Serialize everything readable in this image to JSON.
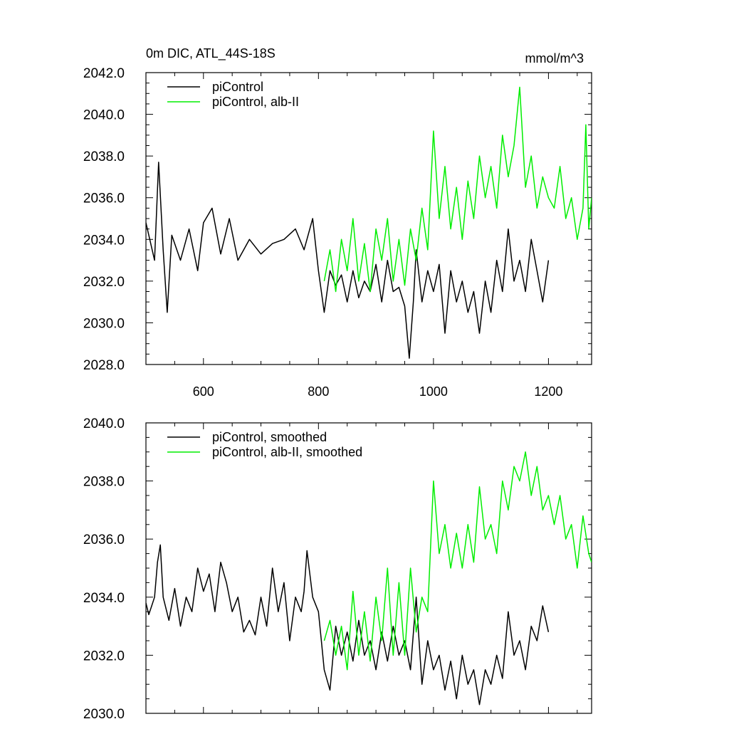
{
  "chart_data": [
    {
      "type": "line",
      "title": "0m DIC, ATL_44S-18S",
      "units": "mmol/m^3",
      "xlim": [
        500,
        1275
      ],
      "ylim": [
        2028.0,
        2042.0
      ],
      "xticks": [
        600,
        800,
        1000,
        1200
      ],
      "xtick_labels": [
        "600",
        "800",
        "1000",
        "1200"
      ],
      "yticks": [
        2028.0,
        2030.0,
        2032.0,
        2034.0,
        2036.0,
        2038.0,
        2040.0,
        2042.0
      ],
      "ytick_labels": [
        "2028.0",
        "2030.0",
        "2032.0",
        "2034.0",
        "2036.0",
        "2038.0",
        "2040.0",
        "2042.0"
      ],
      "legend_position": "top-left",
      "series": [
        {
          "name": "piControl",
          "color": "#000000",
          "x": [
            500,
            515,
            522,
            530,
            537,
            545,
            560,
            575,
            590,
            600,
            615,
            630,
            645,
            660,
            680,
            700,
            720,
            740,
            760,
            775,
            790,
            800,
            805,
            810,
            820,
            830,
            840,
            850,
            860,
            870,
            880,
            890,
            900,
            910,
            920,
            930,
            940,
            950,
            958,
            965,
            970,
            980,
            990,
            1000,
            1010,
            1020,
            1030,
            1040,
            1050,
            1060,
            1070,
            1080,
            1090,
            1100,
            1110,
            1120,
            1130,
            1140,
            1150,
            1160,
            1170,
            1180,
            1190,
            1200
          ],
          "values": [
            2034.8,
            2033.0,
            2037.7,
            2033.5,
            2030.5,
            2034.2,
            2033.0,
            2034.5,
            2032.5,
            2034.8,
            2035.5,
            2033.3,
            2035.0,
            2033.0,
            2034.0,
            2033.3,
            2033.8,
            2034.0,
            2034.5,
            2033.5,
            2035.0,
            2032.5,
            2031.5,
            2030.5,
            2032.5,
            2031.8,
            2032.3,
            2031.0,
            2032.5,
            2031.2,
            2032.0,
            2031.5,
            2032.8,
            2031.0,
            2033.0,
            2031.5,
            2031.7,
            2030.8,
            2028.3,
            2031.0,
            2033.5,
            2031.0,
            2032.5,
            2031.5,
            2032.8,
            2029.5,
            2032.5,
            2031.0,
            2032.0,
            2030.5,
            2031.5,
            2029.5,
            2032.0,
            2030.5,
            2033.0,
            2031.5,
            2034.5,
            2032.0,
            2033.0,
            2031.5,
            2034.0,
            2032.5,
            2031.0,
            2033.0
          ]
        },
        {
          "name": "piControl, alb-II",
          "color": "#00ee00",
          "x": [
            810,
            820,
            830,
            840,
            850,
            860,
            870,
            880,
            890,
            900,
            910,
            920,
            930,
            940,
            950,
            960,
            970,
            980,
            990,
            1000,
            1010,
            1020,
            1030,
            1040,
            1050,
            1060,
            1070,
            1080,
            1090,
            1100,
            1110,
            1120,
            1130,
            1140,
            1150,
            1160,
            1170,
            1180,
            1190,
            1200,
            1210,
            1220,
            1230,
            1240,
            1250,
            1260,
            1265,
            1270,
            1275
          ],
          "values": [
            2032.0,
            2033.5,
            2031.5,
            2034.0,
            2032.5,
            2035.0,
            2032.0,
            2033.8,
            2031.5,
            2034.5,
            2033.0,
            2035.0,
            2032.0,
            2034.0,
            2031.8,
            2034.5,
            2033.0,
            2035.5,
            2033.5,
            2039.2,
            2035.0,
            2037.5,
            2034.5,
            2036.5,
            2034.0,
            2036.8,
            2035.0,
            2038.0,
            2036.0,
            2037.5,
            2035.5,
            2039.0,
            2037.0,
            2038.5,
            2041.3,
            2036.5,
            2038.0,
            2035.5,
            2037.0,
            2036.0,
            2035.5,
            2037.5,
            2035.0,
            2036.0,
            2034.0,
            2035.5,
            2039.5,
            2034.5,
            2036.0
          ]
        }
      ]
    },
    {
      "type": "line",
      "title": "",
      "units": "",
      "xlim": [
        500,
        1275
      ],
      "ylim": [
        2030.0,
        2040.0
      ],
      "xticks": [
        600,
        800,
        1000,
        1200
      ],
      "xtick_labels": [],
      "yticks": [
        2030.0,
        2032.0,
        2034.0,
        2036.0,
        2038.0,
        2040.0
      ],
      "ytick_labels": [
        "2030.0",
        "2032.0",
        "2034.0",
        "2036.0",
        "2038.0",
        "2040.0"
      ],
      "legend_position": "top-left",
      "series": [
        {
          "name": "piControl, smoothed",
          "color": "#000000",
          "x": [
            500,
            505,
            510,
            515,
            520,
            525,
            530,
            540,
            550,
            560,
            570,
            580,
            590,
            600,
            610,
            620,
            630,
            640,
            650,
            660,
            670,
            680,
            690,
            700,
            710,
            720,
            730,
            740,
            750,
            760,
            770,
            775,
            780,
            790,
            800,
            805,
            810,
            820,
            830,
            840,
            850,
            860,
            870,
            880,
            890,
            900,
            910,
            920,
            930,
            940,
            950,
            960,
            970,
            980,
            990,
            1000,
            1010,
            1020,
            1030,
            1040,
            1050,
            1060,
            1070,
            1080,
            1090,
            1100,
            1110,
            1120,
            1130,
            1140,
            1150,
            1160,
            1170,
            1180,
            1190,
            1200
          ],
          "values": [
            2033.8,
            2033.4,
            2033.7,
            2034.0,
            2035.2,
            2035.8,
            2034.0,
            2033.2,
            2034.3,
            2033.0,
            2034.0,
            2033.5,
            2035.0,
            2034.2,
            2034.8,
            2033.5,
            2035.2,
            2034.5,
            2033.5,
            2034.0,
            2032.8,
            2033.2,
            2032.7,
            2034.0,
            2033.0,
            2035.0,
            2033.5,
            2034.5,
            2032.5,
            2034.0,
            2033.5,
            2034.2,
            2035.6,
            2034.0,
            2033.5,
            2032.5,
            2031.5,
            2030.8,
            2033.0,
            2032.0,
            2032.8,
            2031.8,
            2033.2,
            2032.0,
            2032.5,
            2031.5,
            2032.8,
            2031.8,
            2033.0,
            2032.0,
            2032.5,
            2031.5,
            2034.0,
            2031.0,
            2032.5,
            2031.5,
            2032.0,
            2030.8,
            2031.8,
            2030.5,
            2032.0,
            2031.0,
            2031.5,
            2030.3,
            2031.5,
            2031.0,
            2032.0,
            2031.2,
            2033.5,
            2032.0,
            2032.5,
            2031.5,
            2033.0,
            2032.5,
            2033.7,
            2032.8
          ]
        },
        {
          "name": "piControl, alb-II, smoothed",
          "color": "#00ee00",
          "x": [
            810,
            820,
            830,
            840,
            850,
            860,
            870,
            880,
            890,
            900,
            910,
            920,
            930,
            940,
            950,
            960,
            970,
            980,
            990,
            1000,
            1010,
            1020,
            1030,
            1040,
            1050,
            1060,
            1070,
            1080,
            1090,
            1100,
            1110,
            1120,
            1130,
            1140,
            1150,
            1160,
            1170,
            1180,
            1190,
            1200,
            1210,
            1220,
            1230,
            1240,
            1250,
            1260,
            1270,
            1275
          ],
          "values": [
            2032.5,
            2033.2,
            2032.0,
            2033.0,
            2031.5,
            2034.2,
            2032.0,
            2033.5,
            2031.8,
            2034.0,
            2032.5,
            2035.0,
            2032.0,
            2034.5,
            2032.0,
            2035.0,
            2032.8,
            2034.0,
            2033.5,
            2038.0,
            2035.5,
            2036.5,
            2035.0,
            2036.2,
            2035.0,
            2036.5,
            2035.2,
            2037.8,
            2036.0,
            2036.5,
            2035.5,
            2038.0,
            2037.0,
            2038.5,
            2038.0,
            2039.0,
            2037.5,
            2038.5,
            2037.0,
            2037.5,
            2036.5,
            2037.5,
            2036.0,
            2036.5,
            2035.0,
            2036.8,
            2035.5,
            2035.2
          ]
        }
      ]
    }
  ]
}
